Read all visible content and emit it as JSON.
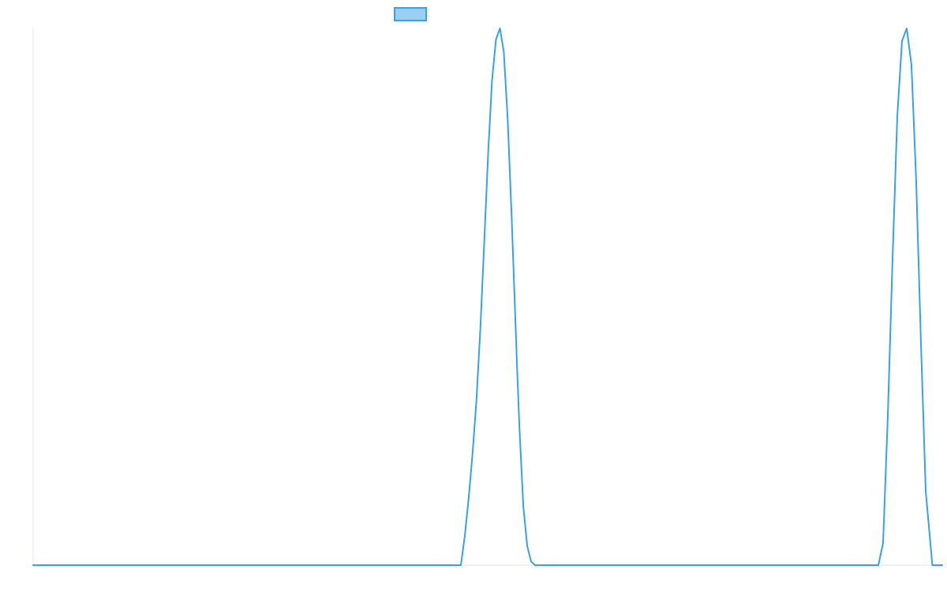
{
  "chart_data": {
    "type": "line",
    "title": "",
    "xlabel": "",
    "ylabel": "",
    "ylim": [
      0,
      1
    ],
    "xlim": [
      0,
      1
    ],
    "grid": false,
    "legend": {
      "placement": "top-center"
    },
    "series": [
      {
        "color": "#36A2EB",
        "fill": "#9AD0F5",
        "x": [
          0,
          0.4705,
          0.4748,
          0.479,
          0.4833,
          0.4876,
          0.4919,
          0.4962,
          0.5005,
          0.5048,
          0.5091,
          0.5134,
          0.5177,
          0.522,
          0.5263,
          0.5306,
          0.5325,
          0.5349,
          0.5392,
          0.5435,
          0.5478,
          0.5521,
          0.5564,
          0.5594,
          0.9297,
          0.9349,
          0.9401,
          0.9453,
          0.9505,
          0.9557,
          0.9609,
          0.9661,
          0.9713,
          0.9766,
          0.9818,
          0.9891,
          1
        ],
        "y": [
          0,
          0,
          0.0546,
          0.1242,
          0.2076,
          0.3073,
          0.4406,
          0.6026,
          0.7684,
          0.9045,
          0.9797,
          1,
          0.9566,
          0.8296,
          0.6502,
          0.4481,
          0.3602,
          0.2562,
          0.1086,
          0.0349,
          0.0066,
          0,
          0,
          0,
          0,
          0.0412,
          0.2785,
          0.5702,
          0.8359,
          0.9765,
          1,
          0.9322,
          0.7156,
          0.4113,
          0.1376,
          0,
          0
        ]
      }
    ]
  }
}
